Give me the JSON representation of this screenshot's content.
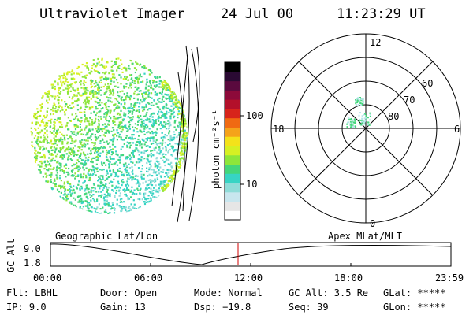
{
  "header": {
    "title": "Ultraviolet Imager",
    "date": "24 Jul 00",
    "time": "11:23:29 UT"
  },
  "colorbar": {
    "unit_label": "photon cm⁻²s⁻¹",
    "tick_100": "100",
    "tick_10": "10",
    "colors": [
      "#ffffff",
      "#e6e6e6",
      "#c8e6ee",
      "#8fdcd8",
      "#37d4c4",
      "#44d67a",
      "#8ee63a",
      "#d7f023",
      "#f4e21a",
      "#f5a31a",
      "#f06a12",
      "#d7241b",
      "#b3102a",
      "#8d0a3a",
      "#5a0a3e",
      "#2a0a33",
      "#000000"
    ]
  },
  "polar": {
    "label_12": "12",
    "label_18": "18",
    "label_6": "6",
    "label_0": "0",
    "label_60": "60",
    "label_70": "70",
    "label_80": "80"
  },
  "altplot": {
    "ylabel": "GC Alt",
    "y_top": "9.0",
    "y_bottom": "1.8",
    "left_title": "Geographic Lat/Lon",
    "right_title": "Apex MLat/MLT",
    "x_ticks": [
      "00:00",
      "06:00",
      "12:00",
      "18:00",
      "23:59"
    ],
    "marker_color": "#d00000"
  },
  "info": {
    "flt": "Flt: LBHL",
    "ip": "IP:  9.0",
    "door": "Door: Open",
    "gain": "Gain: 13",
    "mode": "Mode: Normal",
    "dsp": "Dsp:  −19.8",
    "gcalt": "GC Alt: 3.5 Re",
    "seq": "Seq: 39",
    "glat": "GLat: *****",
    "glon": "GLon: *****"
  }
}
